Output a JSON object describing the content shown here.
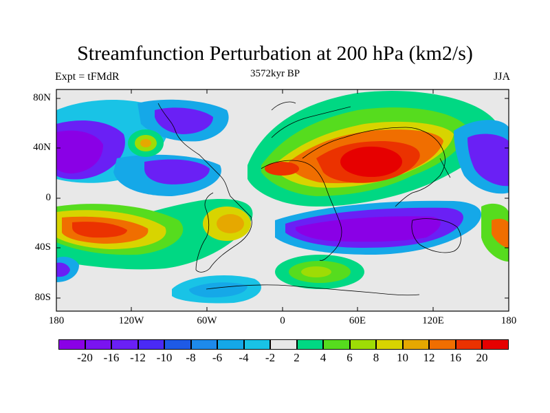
{
  "title": "Streamfunction Perturbation at 200 hPa (km2/s)",
  "subtitle_left": "Expt = tFMdR",
  "subtitle_center": "3572kyr BP",
  "subtitle_right": "JJA",
  "lat_labels": [
    "80N",
    "40N",
    "0",
    "40S",
    "80S"
  ],
  "lon_labels": [
    "180",
    "120W",
    "60W",
    "0",
    "60E",
    "120E",
    "180"
  ],
  "colorbar": {
    "colors": [
      "#8a00e6",
      "#7a14f0",
      "#6a20f5",
      "#4a2af5",
      "#1e5ae6",
      "#1e8aeb",
      "#15a8e8",
      "#19c3e6",
      "#e8e8e8",
      "#00d883",
      "#56dc1e",
      "#9edc05",
      "#d8d400",
      "#e6a800",
      "#f06e00",
      "#eb3200",
      "#e60000"
    ],
    "labels": [
      "-20",
      "-16",
      "-12",
      "-10",
      "-8",
      "-6",
      "-4",
      "-2",
      "2",
      "4",
      "6",
      "8",
      "10",
      "12",
      "16",
      "20"
    ]
  }
}
